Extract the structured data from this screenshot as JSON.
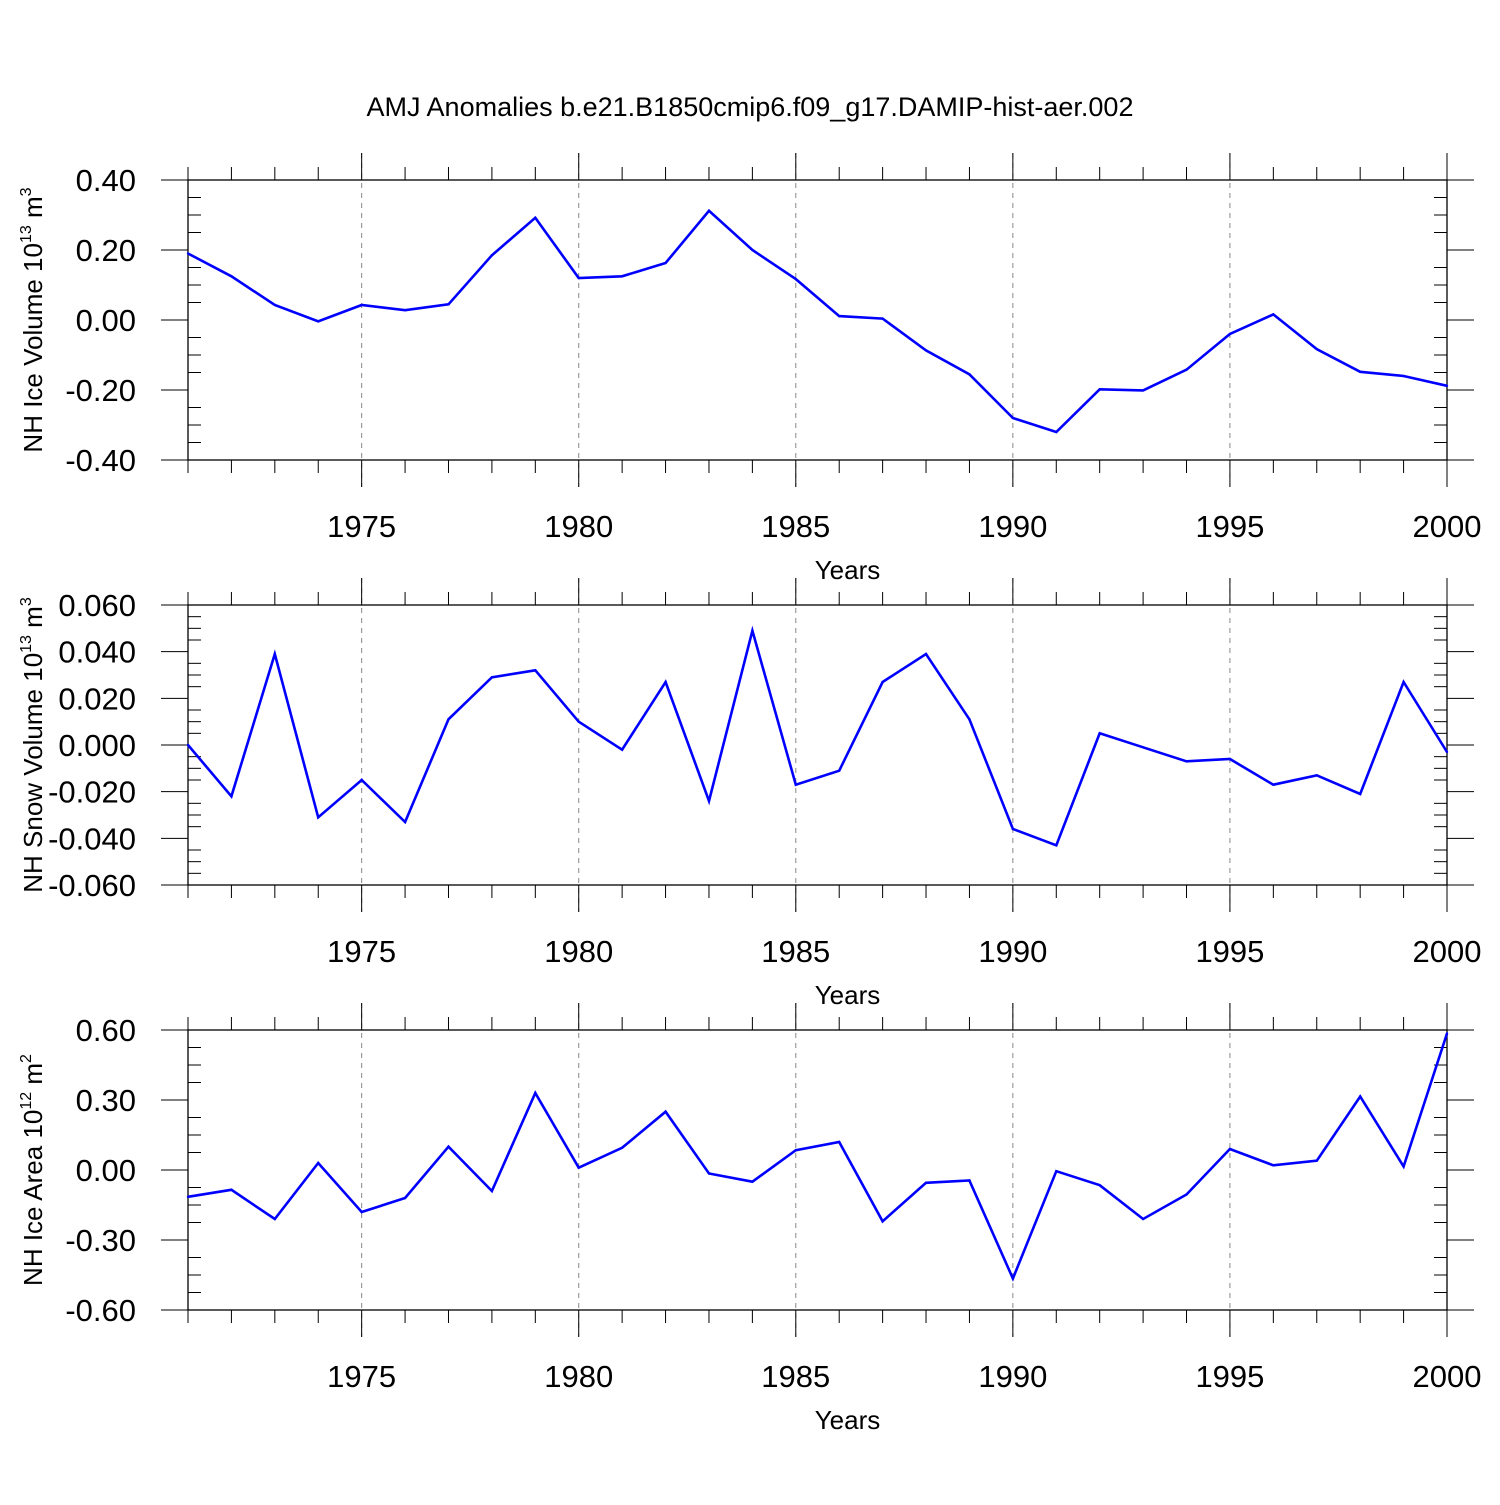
{
  "title": "AMJ Anomalies b.e21.B1850cmip6.f09_g17.DAMIP-hist-aer.002",
  "colors": {
    "line": "#0000ff",
    "axis": "#000000",
    "grid": "#888888"
  },
  "chart_data": [
    {
      "type": "line",
      "ylabel": {
        "main": "NH Ice Volume 10",
        "sup": "13",
        "mid": " m",
        "sup2": "3"
      },
      "xlabel": "Years",
      "xlim": [
        1971,
        2000
      ],
      "ylim": [
        -0.4,
        0.4
      ],
      "x_ticks": [
        1975,
        1980,
        1985,
        1990,
        1995,
        2000
      ],
      "y_ticks": [
        -0.4,
        -0.2,
        0.0,
        0.2,
        0.4
      ],
      "y_tick_labels": [
        "-0.40",
        "-0.20",
        "0.00",
        "0.20",
        "0.40"
      ],
      "grid_x": [
        1975,
        1980,
        1985,
        1990,
        1995
      ],
      "x": [
        1971,
        1972,
        1973,
        1974,
        1975,
        1976,
        1977,
        1978,
        1979,
        1980,
        1981,
        1982,
        1983,
        1984,
        1985,
        1986,
        1987,
        1988,
        1989,
        1990,
        1991,
        1992,
        1993,
        1994,
        1995,
        1996,
        1997,
        1998,
        1999,
        2000
      ],
      "values": [
        0.19,
        0.125,
        0.043,
        -0.004,
        0.043,
        0.028,
        0.045,
        0.185,
        0.292,
        0.12,
        0.125,
        0.163,
        0.312,
        0.2,
        0.117,
        0.011,
        0.004,
        -0.087,
        -0.155,
        -0.28,
        -0.32,
        -0.198,
        -0.201,
        -0.142,
        -0.04,
        0.016,
        -0.083,
        -0.148,
        -0.16,
        -0.188
      ]
    },
    {
      "type": "line",
      "ylabel": {
        "main": "NH Snow Volume 10",
        "sup": "13",
        "mid": " m",
        "sup2": "3"
      },
      "xlabel": "Years",
      "xlim": [
        1971,
        2000
      ],
      "ylim": [
        -0.06,
        0.06
      ],
      "x_ticks": [
        1975,
        1980,
        1985,
        1990,
        1995,
        2000
      ],
      "y_ticks": [
        -0.06,
        -0.04,
        -0.02,
        0.0,
        0.02,
        0.04,
        0.06
      ],
      "y_tick_labels": [
        "-0.060",
        "-0.040",
        "-0.020",
        "0.000",
        "0.020",
        "0.040",
        "0.060"
      ],
      "grid_x": [
        1975,
        1980,
        1985,
        1990,
        1995
      ],
      "x": [
        1971,
        1972,
        1973,
        1974,
        1975,
        1976,
        1977,
        1978,
        1979,
        1980,
        1981,
        1982,
        1983,
        1984,
        1985,
        1986,
        1987,
        1988,
        1989,
        1990,
        1991,
        1992,
        1993,
        1994,
        1995,
        1996,
        1997,
        1998,
        1999,
        2000
      ],
      "values": [
        0.0,
        -0.022,
        0.039,
        -0.031,
        -0.015,
        -0.033,
        0.011,
        0.029,
        0.032,
        0.01,
        -0.002,
        0.027,
        -0.024,
        0.049,
        -0.017,
        -0.011,
        0.027,
        0.039,
        0.011,
        -0.036,
        -0.043,
        0.005,
        -0.001,
        -0.007,
        -0.006,
        -0.017,
        -0.013,
        -0.021,
        0.027,
        -0.003
      ]
    },
    {
      "type": "line",
      "ylabel": {
        "main": "NH Ice Area 10",
        "sup": "12",
        "mid": " m",
        "sup2": "2"
      },
      "xlabel": "Years",
      "xlim": [
        1971,
        2000
      ],
      "ylim": [
        -0.6,
        0.6
      ],
      "x_ticks": [
        1975,
        1980,
        1985,
        1990,
        1995,
        2000
      ],
      "y_ticks": [
        -0.6,
        -0.3,
        0.0,
        0.3,
        0.6
      ],
      "y_tick_labels": [
        "-0.60",
        "-0.30",
        "0.00",
        "0.30",
        "0.60"
      ],
      "grid_x": [
        1975,
        1980,
        1985,
        1990,
        1995
      ],
      "x": [
        1971,
        1972,
        1973,
        1974,
        1975,
        1976,
        1977,
        1978,
        1979,
        1980,
        1981,
        1982,
        1983,
        1984,
        1985,
        1986,
        1987,
        1988,
        1989,
        1990,
        1991,
        1992,
        1993,
        1994,
        1995,
        1996,
        1997,
        1998,
        1999,
        2000
      ],
      "values": [
        -0.115,
        -0.085,
        -0.21,
        0.03,
        -0.18,
        -0.12,
        0.1,
        -0.09,
        0.33,
        0.01,
        0.095,
        0.25,
        -0.015,
        -0.05,
        0.085,
        0.12,
        -0.22,
        -0.055,
        -0.045,
        -0.465,
        -0.005,
        -0.065,
        -0.21,
        -0.105,
        0.09,
        0.02,
        0.04,
        0.315,
        0.015,
        0.585
      ]
    }
  ]
}
